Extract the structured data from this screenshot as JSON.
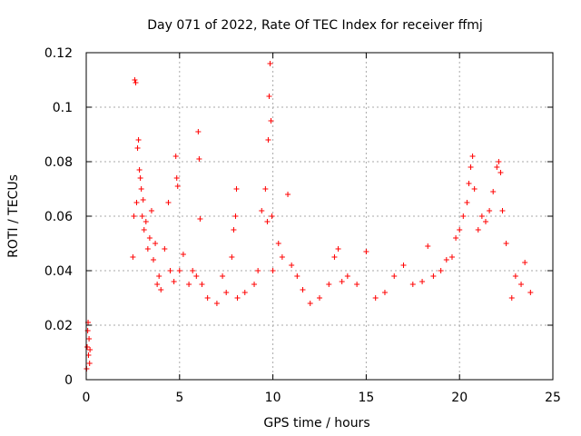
{
  "chart_data": {
    "type": "scatter",
    "title": "Day 071 of 2022, Rate Of TEC Index for receiver ffmj",
    "xlabel": "GPS time / hours",
    "ylabel": "ROTI / TECUs",
    "xlim": [
      0,
      25
    ],
    "ylim": [
      0,
      0.12
    ],
    "xticks": [
      "0",
      "5",
      "10",
      "15",
      "20",
      "25"
    ],
    "yticks": [
      "0",
      "0.02",
      "0.04",
      "0.06",
      "0.08",
      "0.1",
      "0.12"
    ],
    "grid": true,
    "marker": "+",
    "color": "#ff0000",
    "series": [
      {
        "points": [
          [
            0.02,
            0.004
          ],
          [
            0.05,
            0.012
          ],
          [
            0.08,
            0.018
          ],
          [
            0.1,
            0.021
          ],
          [
            0.12,
            0.009
          ],
          [
            0.15,
            0.015
          ],
          [
            0.18,
            0.006
          ],
          [
            0.2,
            0.011
          ],
          [
            2.5,
            0.045
          ],
          [
            2.55,
            0.06
          ],
          [
            2.6,
            0.11
          ],
          [
            2.65,
            0.109
          ],
          [
            2.7,
            0.065
          ],
          [
            2.75,
            0.085
          ],
          [
            2.8,
            0.088
          ],
          [
            2.85,
            0.077
          ],
          [
            2.9,
            0.074
          ],
          [
            2.95,
            0.07
          ],
          [
            3.0,
            0.06
          ],
          [
            3.05,
            0.066
          ],
          [
            3.1,
            0.055
          ],
          [
            3.2,
            0.058
          ],
          [
            3.3,
            0.048
          ],
          [
            3.4,
            0.052
          ],
          [
            3.5,
            0.062
          ],
          [
            3.6,
            0.044
          ],
          [
            3.7,
            0.05
          ],
          [
            3.8,
            0.035
          ],
          [
            3.9,
            0.038
          ],
          [
            4.0,
            0.033
          ],
          [
            4.2,
            0.048
          ],
          [
            4.4,
            0.065
          ],
          [
            4.5,
            0.04
          ],
          [
            4.7,
            0.036
          ],
          [
            4.8,
            0.082
          ],
          [
            4.85,
            0.074
          ],
          [
            4.9,
            0.071
          ],
          [
            5.0,
            0.04
          ],
          [
            5.2,
            0.046
          ],
          [
            5.5,
            0.035
          ],
          [
            5.7,
            0.04
          ],
          [
            5.9,
            0.038
          ],
          [
            6.0,
            0.091
          ],
          [
            6.05,
            0.081
          ],
          [
            6.1,
            0.059
          ],
          [
            6.2,
            0.035
          ],
          [
            6.5,
            0.03
          ],
          [
            7.0,
            0.028
          ],
          [
            7.3,
            0.038
          ],
          [
            7.5,
            0.032
          ],
          [
            7.8,
            0.045
          ],
          [
            7.9,
            0.055
          ],
          [
            8.0,
            0.06
          ],
          [
            8.05,
            0.07
          ],
          [
            8.1,
            0.03
          ],
          [
            8.5,
            0.032
          ],
          [
            9.0,
            0.035
          ],
          [
            9.2,
            0.04
          ],
          [
            9.4,
            0.062
          ],
          [
            9.6,
            0.07
          ],
          [
            9.7,
            0.058
          ],
          [
            9.75,
            0.088
          ],
          [
            9.8,
            0.104
          ],
          [
            9.85,
            0.116
          ],
          [
            9.9,
            0.095
          ],
          [
            9.95,
            0.06
          ],
          [
            10.0,
            0.04
          ],
          [
            10.3,
            0.05
          ],
          [
            10.5,
            0.045
          ],
          [
            10.8,
            0.068
          ],
          [
            11.0,
            0.042
          ],
          [
            11.3,
            0.038
          ],
          [
            11.6,
            0.033
          ],
          [
            12.0,
            0.028
          ],
          [
            12.5,
            0.03
          ],
          [
            13.0,
            0.035
          ],
          [
            13.3,
            0.045
          ],
          [
            13.5,
            0.048
          ],
          [
            13.7,
            0.036
          ],
          [
            14.0,
            0.038
          ],
          [
            14.5,
            0.035
          ],
          [
            15.0,
            0.047
          ],
          [
            15.5,
            0.03
          ],
          [
            16.0,
            0.032
          ],
          [
            16.5,
            0.038
          ],
          [
            17.0,
            0.042
          ],
          [
            17.5,
            0.035
          ],
          [
            18.0,
            0.036
          ],
          [
            18.3,
            0.049
          ],
          [
            18.6,
            0.038
          ],
          [
            19.0,
            0.04
          ],
          [
            19.3,
            0.044
          ],
          [
            19.6,
            0.045
          ],
          [
            19.8,
            0.052
          ],
          [
            20.0,
            0.055
          ],
          [
            20.2,
            0.06
          ],
          [
            20.4,
            0.065
          ],
          [
            20.5,
            0.072
          ],
          [
            20.6,
            0.078
          ],
          [
            20.7,
            0.082
          ],
          [
            20.8,
            0.07
          ],
          [
            21.0,
            0.055
          ],
          [
            21.2,
            0.06
          ],
          [
            21.4,
            0.058
          ],
          [
            21.6,
            0.062
          ],
          [
            21.8,
            0.069
          ],
          [
            22.0,
            0.078
          ],
          [
            22.1,
            0.08
          ],
          [
            22.2,
            0.076
          ],
          [
            22.3,
            0.062
          ],
          [
            22.5,
            0.05
          ],
          [
            22.8,
            0.03
          ],
          [
            23.0,
            0.038
          ],
          [
            23.3,
            0.035
          ],
          [
            23.5,
            0.043
          ],
          [
            23.8,
            0.032
          ]
        ]
      }
    ]
  }
}
